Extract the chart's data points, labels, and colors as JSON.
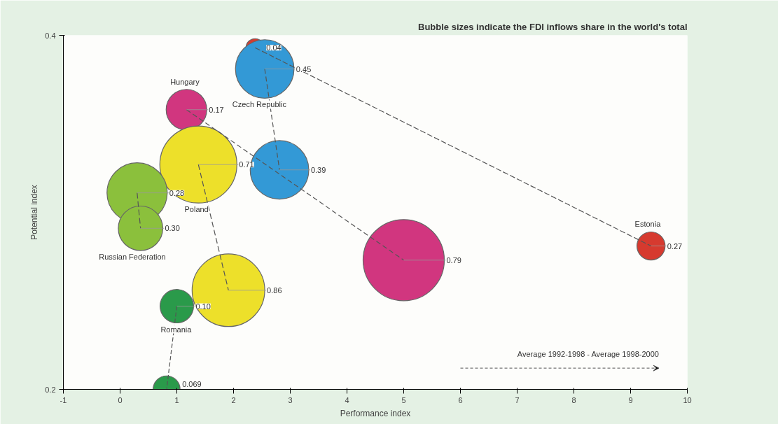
{
  "chart_data": {
    "type": "bubble",
    "title": "Bubble sizes indicate the FDI inflows share in the world's total",
    "xlabel": "Performance index",
    "ylabel": "Potential index",
    "xlim": [
      -1,
      10
    ],
    "ylim": [
      0.2,
      0.4
    ],
    "xticks": [
      -1,
      0,
      1,
      2,
      3,
      4,
      5,
      6,
      7,
      8,
      9,
      10
    ],
    "yticks": [
      0.2,
      0.4
    ],
    "grid": false,
    "legend": false,
    "line_style": "dashed",
    "annotations": [
      "Average 1992-1998 - Average 1998-2000",
      {
        "text": "0.04",
        "x": 2.38,
        "y": 0.393
      },
      {
        "text": "0.27",
        "x": 9.36,
        "y": 0.281
      },
      {
        "text": "0.45",
        "x": 2.55,
        "y": 0.381
      },
      {
        "text": "0.39",
        "x": 2.81,
        "y": 0.324
      },
      {
        "text": "0.17",
        "x": 1.17,
        "y": 0.358
      },
      {
        "text": "0.79",
        "x": 5.0,
        "y": 0.273
      },
      {
        "text": "0.71",
        "x": 1.38,
        "y": 0.327
      },
      {
        "text": "0.86",
        "x": 1.91,
        "y": 0.256
      },
      {
        "text": "0.28",
        "x": 0.3,
        "y": 0.311
      },
      {
        "text": "0.30",
        "x": 0.36,
        "y": 0.291
      },
      {
        "text": "0.10",
        "x": 1.0,
        "y": 0.247
      },
      {
        "text": "0.069",
        "x": 0.82,
        "y": 0.2
      }
    ],
    "series": [
      {
        "type": "line",
        "color": "#555555",
        "x": [
          2.38,
          9.36
        ],
        "values": [
          0.393,
          0.281
        ]
      },
      {
        "type": "line",
        "color": "#555555",
        "x": [
          2.55,
          2.81
        ],
        "values": [
          0.381,
          0.324
        ]
      },
      {
        "type": "line",
        "color": "#555555",
        "x": [
          1.17,
          5.0
        ],
        "values": [
          0.358,
          0.273
        ]
      },
      {
        "type": "line",
        "color": "#555555",
        "x": [
          1.38,
          1.91
        ],
        "values": [
          0.327,
          0.256
        ]
      },
      {
        "type": "line",
        "color": "#555555",
        "x": [
          0.3,
          0.36
        ],
        "values": [
          0.311,
          0.291
        ]
      },
      {
        "type": "line",
        "color": "#555555",
        "x": [
          1.0,
          0.82
        ],
        "values": [
          0.247,
          0.2
        ]
      },
      {
        "name": "Estonia",
        "color": "#d63a2f",
        "x": [
          2.38,
          9.36
        ],
        "values": [
          0.393,
          0.281
        ],
        "sizes": [
          0.05,
          0.12
        ]
      },
      {
        "name": "Czech Republic",
        "color": "#3399d6",
        "x": [
          2.55,
          2.81
        ],
        "values": [
          0.381,
          0.324
        ],
        "sizes": [
          0.52,
          0.52
        ]
      },
      {
        "name": "Hungary",
        "color": "#d1367f",
        "x": [
          1.17,
          5.0
        ],
        "values": [
          0.358,
          0.273
        ],
        "sizes": [
          0.25,
          1
        ]
      },
      {
        "name": "Poland",
        "color": "#ede02a",
        "x": [
          1.38,
          1.91
        ],
        "values": [
          0.327,
          0.256
        ],
        "sizes": [
          0.9,
          0.8
        ]
      },
      {
        "name": "Russian Federation",
        "color": "#8bc03c",
        "x": [
          0.3,
          0.36
        ],
        "values": [
          0.311,
          0.291
        ],
        "sizes": [
          0.55,
          0.3
        ]
      },
      {
        "name": "Romania",
        "color": "#2a9a4a",
        "x": [
          1.0,
          0.82
        ],
        "values": [
          0.247,
          0.2
        ],
        "sizes": [
          0.17,
          0.11
        ]
      }
    ]
  }
}
